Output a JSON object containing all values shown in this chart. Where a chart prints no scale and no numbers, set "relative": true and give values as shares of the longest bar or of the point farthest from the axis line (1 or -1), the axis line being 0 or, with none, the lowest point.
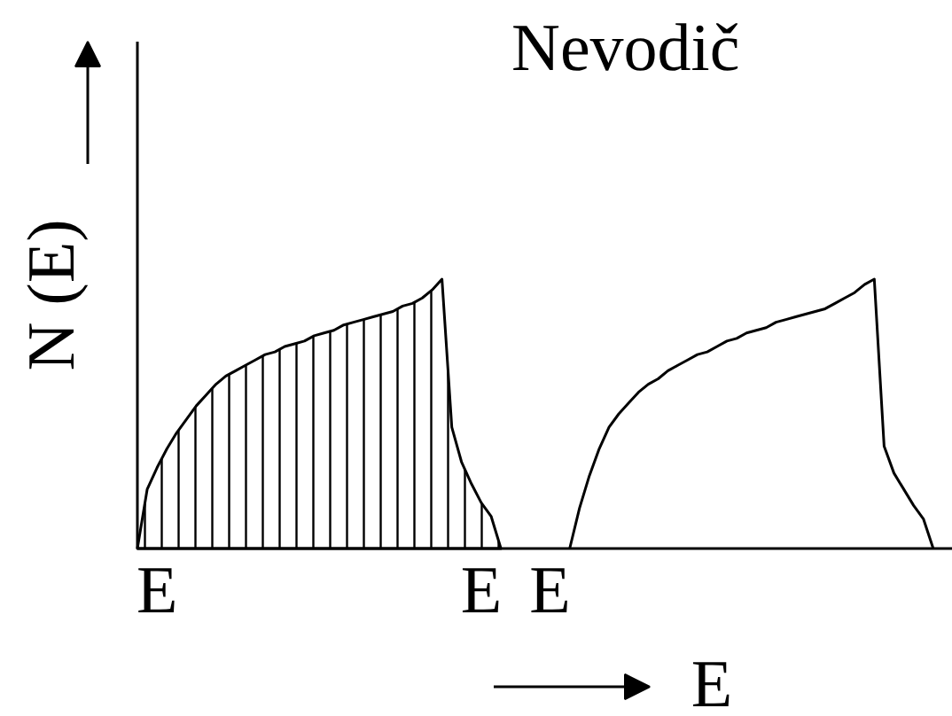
{
  "chart_data": {
    "type": "area",
    "title": "Nevodič",
    "xlabel": "E",
    "ylabel": "N (E)",
    "relative": true,
    "grid": false,
    "categories": [
      null,
      null,
      "E",
      null,
      null,
      null,
      null,
      null,
      null,
      null,
      null,
      null,
      null,
      null,
      null,
      null,
      null,
      null,
      null,
      null,
      null,
      null,
      null,
      null,
      null,
      null,
      null,
      null,
      null,
      null,
      null,
      null,
      null,
      null,
      null,
      "E",
      null,
      null,
      null,
      null,
      null,
      null,
      "E",
      null,
      null,
      null,
      null,
      null,
      null,
      null,
      null,
      null,
      null,
      null,
      null,
      null,
      null,
      null,
      null,
      null,
      null,
      null,
      null,
      null,
      null,
      null,
      null,
      null,
      null,
      null,
      null,
      null,
      null,
      null,
      null,
      null,
      null,
      null,
      null,
      null,
      null,
      null,
      null,
      null
    ],
    "series": [
      {
        "color": "#000000",
        "values": [
          0,
          0.22,
          0.3,
          0.37,
          0.43,
          0.48,
          0.53,
          0.57,
          0.61,
          0.64,
          0.66,
          0.68,
          0.7,
          0.72,
          0.73,
          0.75,
          0.76,
          0.77,
          0.79,
          0.8,
          0.81,
          0.83,
          0.84,
          0.85,
          0.86,
          0.87,
          0.88,
          0.9,
          0.91,
          0.93,
          0.96,
          1,
          0.45,
          0.32,
          0.24,
          0.17,
          0.12,
          0,
          null,
          null,
          null,
          null,
          null,
          null,
          null,
          null,
          null,
          null,
          null,
          null,
          null,
          null,
          null,
          null,
          null,
          null,
          null,
          null,
          null,
          null,
          null,
          null,
          null,
          null,
          null,
          null,
          null,
          null,
          null,
          null,
          null,
          null,
          null,
          null,
          null,
          null,
          null,
          null,
          null,
          null,
          null,
          null,
          null,
          null
        ]
      },
      {
        "type": "line",
        "color": "#000000",
        "values": [
          null,
          null,
          null,
          null,
          null,
          null,
          null,
          null,
          null,
          null,
          null,
          null,
          null,
          null,
          null,
          null,
          null,
          null,
          null,
          null,
          null,
          null,
          null,
          null,
          null,
          null,
          null,
          null,
          null,
          null,
          null,
          null,
          null,
          null,
          null,
          null,
          null,
          null,
          null,
          null,
          null,
          null,
          null,
          null,
          0,
          0.15,
          0.27,
          0.37,
          0.45,
          0.5,
          0.54,
          0.58,
          0.61,
          0.63,
          0.66,
          0.68,
          0.7,
          0.72,
          0.73,
          0.75,
          0.77,
          0.78,
          0.8,
          0.81,
          0.82,
          0.84,
          0.85,
          0.86,
          0.87,
          0.88,
          0.89,
          0.91,
          0.93,
          0.95,
          0.98,
          1,
          0.38,
          0.28,
          0.22,
          0.16,
          0.11,
          0,
          null,
          null
        ]
      }
    ]
  }
}
